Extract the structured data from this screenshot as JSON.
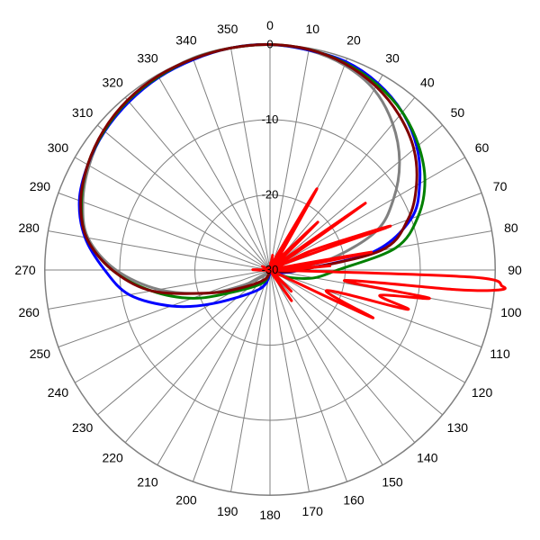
{
  "chart_data": {
    "type": "polar-line",
    "title": "",
    "angle_unit": "degrees",
    "angle_direction": "clockwise",
    "angle_zero": "top",
    "angle_ticks": [
      "0",
      "10",
      "20",
      "30",
      "40",
      "50",
      "60",
      "70",
      "80",
      "90",
      "100",
      "110",
      "120",
      "130",
      "140",
      "150",
      "160",
      "170",
      "180",
      "190",
      "200",
      "210",
      "220",
      "230",
      "240",
      "250",
      "260",
      "270",
      "280",
      "290",
      "300",
      "310",
      "320",
      "330",
      "340",
      "350"
    ],
    "radial_range_db": [
      -30,
      0
    ],
    "radial_ticks": [
      {
        "value": -30,
        "label": "-30"
      },
      {
        "value": -20,
        "label": "-20"
      },
      {
        "value": -10,
        "label": "-10"
      },
      {
        "value": 0,
        "label": "0"
      }
    ],
    "outer_ring_db": 0.5,
    "grid": true,
    "legend": "none",
    "series": [
      {
        "color": "#808080",
        "theta": [
          0,
          10,
          20,
          30,
          40,
          50,
          60,
          70,
          80,
          90,
          100,
          110,
          120,
          150,
          180,
          210,
          240,
          250,
          260,
          270,
          280,
          290,
          300,
          310,
          320,
          330,
          340,
          350
        ],
        "r": [
          0,
          -0.3,
          -1,
          -2.3,
          -4.6,
          -7.5,
          -11,
          -15,
          -22,
          -28,
          -28,
          -29,
          -29.5,
          -30,
          -30,
          -29.5,
          -26,
          -21,
          -15,
          -9.5,
          -5.4,
          -3.5,
          -2.2,
          -1.2,
          -0.7,
          -0.3,
          0,
          0
        ]
      },
      {
        "color": "#0000ff",
        "theta": [
          0,
          10,
          20,
          30,
          40,
          50,
          60,
          70,
          80,
          90,
          100,
          110,
          120,
          150,
          180,
          210,
          240,
          250,
          260,
          270,
          280,
          290,
          300,
          310,
          320,
          330,
          340,
          350
        ],
        "r": [
          0,
          -0.3,
          -0.5,
          -1.3,
          -2.6,
          -4.5,
          -7,
          -10,
          -16,
          -26,
          -28,
          -29,
          -29.5,
          -30,
          -29.5,
          -27,
          -21,
          -16,
          -11,
          -8,
          -5,
          -3,
          -2,
          -1.3,
          -0.8,
          -0.4,
          -0.2,
          0
        ]
      },
      {
        "color": "#008000",
        "theta": [
          0,
          10,
          20,
          30,
          40,
          50,
          60,
          70,
          80,
          90,
          100,
          110,
          120,
          150,
          180,
          210,
          240,
          250,
          260,
          270,
          280,
          290,
          300,
          310,
          320,
          330,
          340,
          350
        ],
        "r": [
          0,
          -0.2,
          -0.7,
          -1.5,
          -2.6,
          -4.2,
          -6.2,
          -9,
          -13,
          -21,
          -24,
          -27,
          -29,
          -30,
          -30,
          -28,
          -24,
          -19,
          -14,
          -9,
          -5.2,
          -3.3,
          -2,
          -1.2,
          -0.6,
          -0.3,
          -0.1,
          0
        ]
      },
      {
        "color": "#800000",
        "theta": [
          0,
          10,
          20,
          30,
          40,
          50,
          60,
          70,
          80,
          90,
          100,
          110,
          120,
          150,
          180,
          210,
          240,
          250,
          260,
          270,
          280,
          290,
          300,
          310,
          320,
          330,
          340,
          350
        ],
        "r": [
          0,
          -0.2,
          -0.8,
          -1.8,
          -3.2,
          -5,
          -7.5,
          -10.5,
          -15,
          -26,
          -29,
          -29.5,
          -30,
          -30,
          -30,
          -28.5,
          -25,
          -21,
          -14,
          -9,
          -5.2,
          -3.2,
          -2,
          -1.1,
          -0.5,
          -0.2,
          -0.1,
          0
        ]
      },
      {
        "color": "#ff0000",
        "theta": [
          0,
          5,
          8,
          10,
          12,
          15,
          20,
          25,
          30,
          35,
          40,
          45,
          50,
          55,
          60,
          65,
          70,
          75,
          80,
          83,
          86,
          88,
          90,
          92,
          94,
          95,
          96,
          98,
          100,
          103,
          106,
          110,
          115,
          120,
          125,
          130,
          135,
          140,
          145,
          150,
          155,
          160,
          180,
          200,
          220,
          240,
          260,
          280,
          300,
          320,
          340,
          355
        ],
        "r": [
          -30,
          -29,
          -30,
          -28,
          -30,
          -30,
          -30,
          -28,
          -17.5,
          -28,
          -30,
          -21,
          -30,
          -14.5,
          -30,
          -24,
          -13,
          -30,
          -16.3,
          -30,
          -22,
          -30,
          -30,
          -3.4,
          1,
          0.5,
          -5,
          -20,
          -8.5,
          -15,
          -11,
          -22,
          -15,
          -30,
          -30,
          -30,
          -26,
          -30,
          -25,
          -30,
          -30,
          -30,
          -30,
          -30,
          -30,
          -30,
          -30,
          -30,
          -30,
          -30,
          -30,
          -30
        ]
      }
    ]
  }
}
